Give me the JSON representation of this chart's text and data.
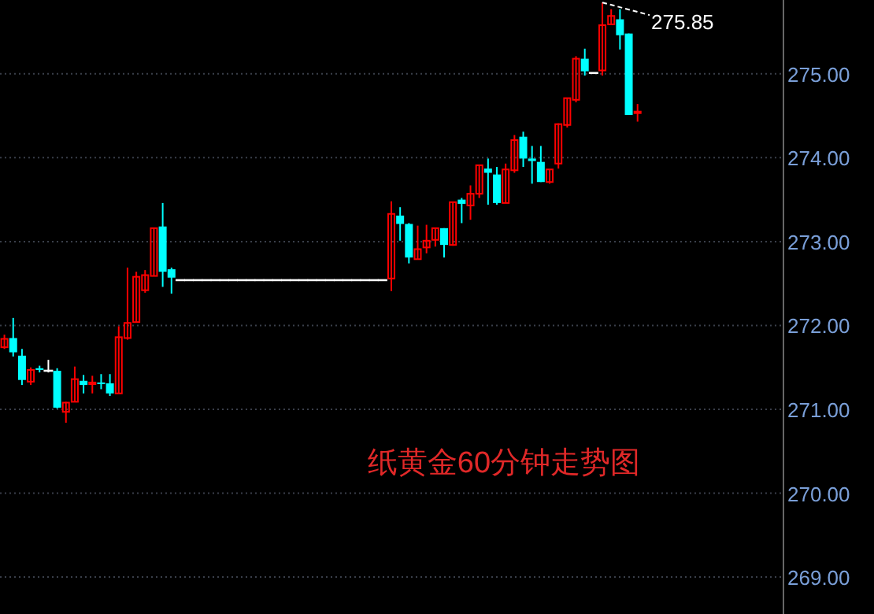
{
  "chart_data": {
    "type": "candlestick",
    "title": "纸黄金60分钟走势图",
    "categories": [
      null,
      null,
      null,
      null,
      null,
      null,
      null,
      null,
      null,
      null,
      null,
      null,
      null,
      null,
      null,
      null,
      null,
      null,
      null,
      null,
      null,
      null,
      null,
      null,
      null,
      null,
      null,
      null,
      null,
      null,
      null,
      null,
      null,
      null,
      null,
      null,
      null,
      null,
      null,
      null,
      null,
      null,
      null,
      null,
      null,
      null,
      null,
      null,
      null,
      null,
      null,
      null,
      null,
      null,
      null,
      null,
      null,
      null,
      null,
      null,
      null,
      null,
      null,
      null,
      null,
      null,
      null,
      null,
      null,
      null,
      null,
      null,
      null,
      null,
      null,
      null,
      null,
      null,
      null,
      null,
      null,
      null,
      null,
      null,
      null,
      null,
      null,
      null,
      null
    ],
    "ohlc": [
      [
        271.74,
        271.89,
        271.72,
        271.84
      ],
      [
        271.85,
        272.09,
        271.63,
        271.68
      ],
      [
        271.64,
        271.72,
        271.29,
        271.35
      ],
      [
        271.33,
        271.5,
        271.29,
        271.47
      ],
      [
        271.49,
        271.52,
        271.44,
        271.47
      ],
      [
        271.46,
        271.59,
        271.44,
        271.46
      ],
      [
        271.46,
        271.49,
        271.01,
        271.02
      ],
      [
        270.97,
        271.09,
        270.84,
        271.08
      ],
      [
        271.09,
        271.51,
        271.09,
        271.36
      ],
      [
        271.34,
        271.41,
        271.19,
        271.29
      ],
      [
        271.3,
        271.4,
        271.19,
        271.32
      ],
      [
        271.32,
        271.42,
        271.24,
        271.31
      ],
      [
        271.31,
        271.42,
        271.16,
        271.19
      ],
      [
        271.19,
        271.99,
        271.19,
        271.86
      ],
      [
        271.85,
        272.69,
        271.83,
        272.03
      ],
      [
        272.04,
        272.64,
        272.04,
        272.58
      ],
      [
        272.42,
        272.66,
        272.39,
        272.6
      ],
      [
        272.59,
        273.16,
        272.59,
        273.16
      ],
      [
        273.18,
        273.46,
        272.46,
        272.64
      ],
      [
        272.67,
        272.69,
        272.38,
        272.57
      ],
      [
        272.54,
        272.54,
        272.54,
        272.54
      ],
      [
        272.54,
        272.54,
        272.54,
        272.54
      ],
      [
        272.54,
        272.54,
        272.54,
        272.54
      ],
      [
        272.54,
        272.54,
        272.54,
        272.54
      ],
      [
        272.54,
        272.54,
        272.54,
        272.54
      ],
      [
        272.54,
        272.54,
        272.54,
        272.54
      ],
      [
        272.54,
        272.54,
        272.54,
        272.54
      ],
      [
        272.54,
        272.54,
        272.54,
        272.54
      ],
      [
        272.54,
        272.54,
        272.54,
        272.54
      ],
      [
        272.54,
        272.54,
        272.54,
        272.54
      ],
      [
        272.54,
        272.54,
        272.54,
        272.54
      ],
      [
        272.54,
        272.54,
        272.54,
        272.54
      ],
      [
        272.54,
        272.54,
        272.54,
        272.54
      ],
      [
        272.54,
        272.54,
        272.54,
        272.54
      ],
      [
        272.54,
        272.54,
        272.54,
        272.54
      ],
      [
        272.54,
        272.54,
        272.54,
        272.54
      ],
      [
        272.54,
        272.54,
        272.54,
        272.54
      ],
      [
        272.54,
        272.54,
        272.54,
        272.54
      ],
      [
        272.54,
        272.54,
        272.54,
        272.54
      ],
      [
        272.54,
        272.54,
        272.54,
        272.54
      ],
      [
        272.54,
        272.54,
        272.54,
        272.54
      ],
      [
        272.54,
        272.54,
        272.54,
        272.54
      ],
      [
        272.54,
        272.54,
        272.54,
        272.54
      ],
      [
        272.54,
        272.54,
        272.54,
        272.54
      ],
      [
        272.56,
        273.48,
        272.41,
        273.33
      ],
      [
        273.31,
        273.41,
        273.01,
        273.21
      ],
      [
        273.21,
        273.22,
        272.74,
        272.81
      ],
      [
        272.79,
        273.19,
        272.79,
        272.91
      ],
      [
        272.93,
        273.2,
        272.86,
        273.01
      ],
      [
        273.02,
        273.16,
        272.94,
        273.16
      ],
      [
        273.16,
        273.16,
        272.81,
        272.96
      ],
      [
        272.96,
        273.47,
        272.95,
        273.47
      ],
      [
        273.5,
        273.52,
        273.22,
        273.45
      ],
      [
        273.43,
        273.67,
        273.26,
        273.57
      ],
      [
        273.57,
        273.91,
        273.52,
        273.91
      ],
      [
        273.87,
        273.99,
        273.44,
        273.82
      ],
      [
        273.8,
        273.89,
        273.44,
        273.46
      ],
      [
        273.46,
        273.93,
        273.46,
        273.86
      ],
      [
        273.85,
        274.27,
        273.82,
        274.21
      ],
      [
        274.25,
        274.31,
        273.89,
        273.99
      ],
      [
        273.99,
        274.14,
        273.69,
        273.96
      ],
      [
        273.95,
        274.14,
        273.71,
        273.71
      ],
      [
        273.71,
        273.86,
        273.69,
        273.86
      ],
      [
        273.93,
        274.41,
        273.87,
        274.4
      ],
      [
        274.39,
        274.71,
        274.36,
        274.71
      ],
      [
        274.69,
        275.21,
        274.66,
        275.18
      ],
      [
        275.18,
        275.3,
        274.98,
        275.03
      ],
      [
        275.01,
        275.01,
        275.01,
        275.01
      ],
      [
        275.04,
        275.85,
        274.98,
        275.58
      ],
      [
        275.59,
        275.77,
        275.59,
        275.69
      ],
      [
        275.65,
        275.77,
        275.29,
        275.46
      ],
      [
        275.48,
        275.48,
        274.51,
        274.51
      ],
      [
        274.54,
        274.64,
        274.43,
        274.55
      ],
      null,
      null,
      null,
      null,
      null,
      null,
      null,
      null,
      null,
      null,
      null,
      null,
      null,
      null,
      null,
      null
    ],
    "colors": [
      "#ff0000",
      "#00ffff",
      "#00ffff",
      "#ff0000",
      "#00ffff",
      "#ffffff",
      "#00ffff",
      "#ff0000",
      "#ff0000",
      "#00ffff",
      "#ff0000",
      "#00ffff",
      "#00ffff",
      "#ff0000",
      "#ff0000",
      "#ff0000",
      "#ff0000",
      "#ff0000",
      "#00ffff",
      "#00ffff",
      "#ffffff",
      "#ffffff",
      "#ffffff",
      "#ffffff",
      "#ffffff",
      "#ffffff",
      "#ffffff",
      "#ffffff",
      "#ffffff",
      "#ffffff",
      "#ffffff",
      "#ffffff",
      "#ffffff",
      "#ffffff",
      "#ffffff",
      "#ffffff",
      "#ffffff",
      "#ffffff",
      "#ffffff",
      "#ffffff",
      "#ffffff",
      "#ffffff",
      "#ffffff",
      "#ffffff",
      "#ff0000",
      "#00ffff",
      "#00ffff",
      "#ff0000",
      "#ff0000",
      "#ff0000",
      "#00ffff",
      "#ff0000",
      "#00ffff",
      "#ff0000",
      "#ff0000",
      "#00ffff",
      "#00ffff",
      "#ff0000",
      "#ff0000",
      "#00ffff",
      "#00ffff",
      "#00ffff",
      "#ff0000",
      "#ff0000",
      "#ff0000",
      "#ff0000",
      "#00ffff",
      "#ffffff",
      "#ff0000",
      "#ff0000",
      "#00ffff",
      "#00ffff",
      "#ff0000",
      null,
      null,
      null,
      null,
      null,
      null,
      null,
      null,
      null,
      null,
      null,
      null,
      null,
      null,
      null,
      null
    ],
    "ylim": [
      268.56,
      275.88
    ],
    "yticks": [
      {
        "value": 269,
        "label": "269.00"
      },
      {
        "value": 270,
        "label": "270.00"
      },
      {
        "value": 271,
        "label": "271.00"
      },
      {
        "value": 272,
        "label": "272.00"
      },
      {
        "value": 273,
        "label": "273.00"
      },
      {
        "value": 274,
        "label": "274.00"
      },
      {
        "value": 275,
        "label": "275.00"
      }
    ],
    "grid": "y",
    "annotations": [
      "275.85"
    ]
  }
}
